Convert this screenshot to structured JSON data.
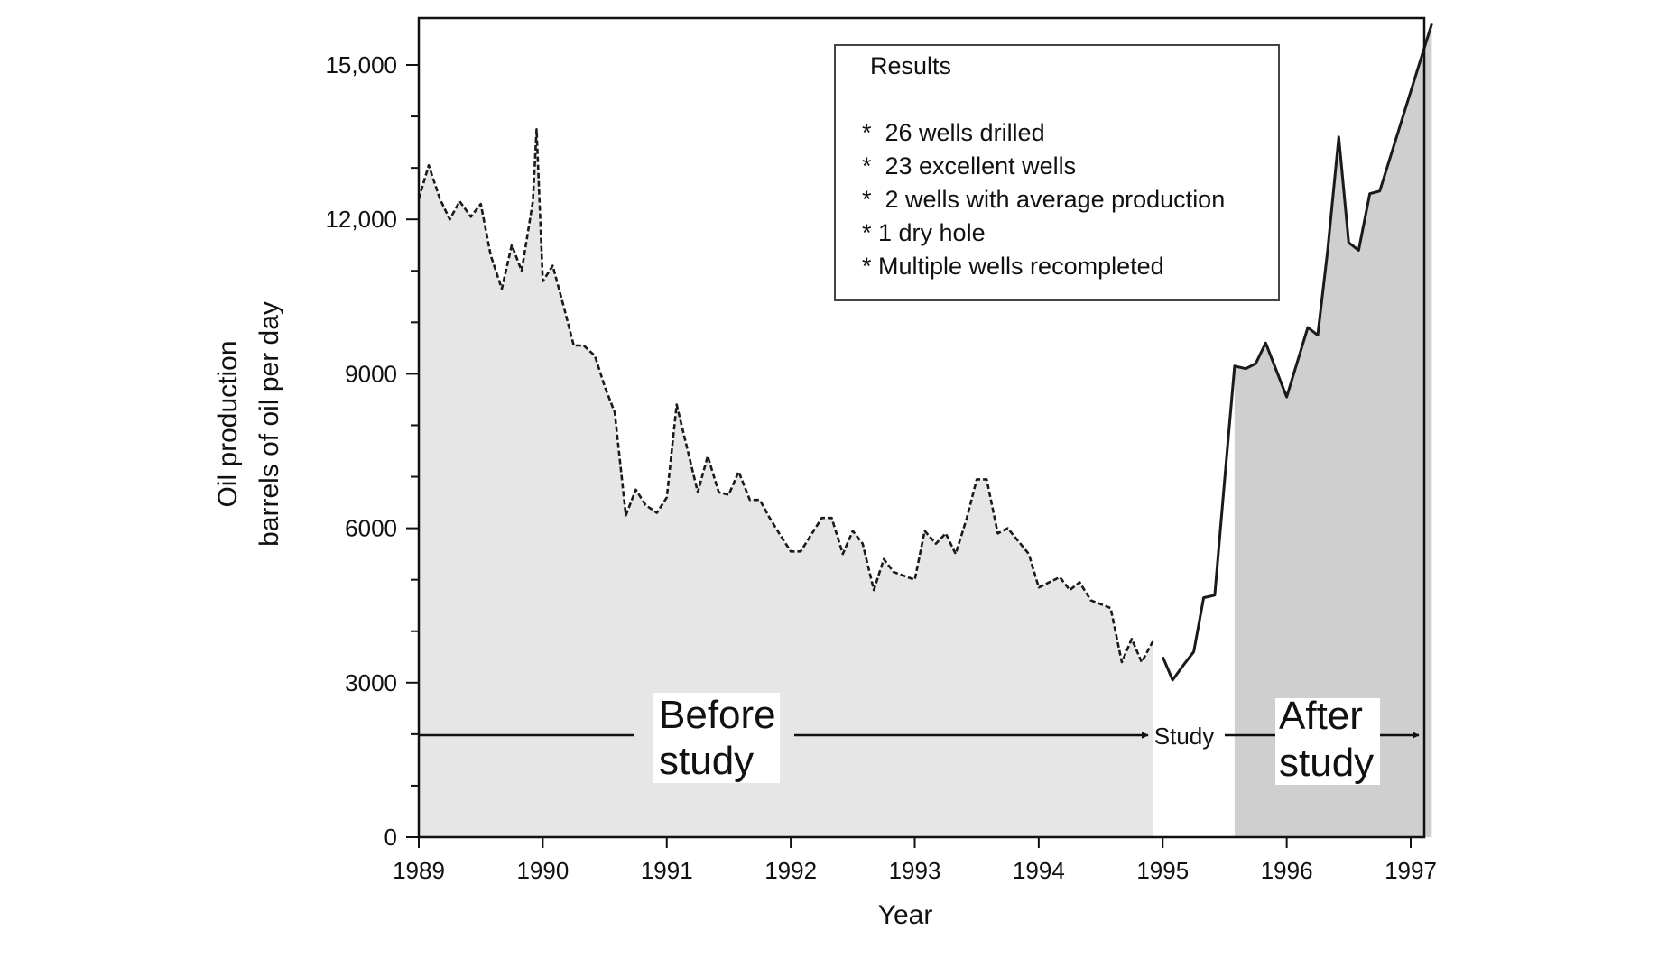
{
  "chart_data": {
    "type": "area",
    "title": "",
    "xlabel": "Year",
    "ylabel": [
      "Oil production",
      "barrels of oil per day"
    ],
    "xlim": [
      1989,
      1997.2
    ],
    "ylim": [
      0,
      16000
    ],
    "x_ticks": [
      1989,
      1990,
      1991,
      1992,
      1993,
      1994,
      1995,
      1996,
      1997
    ],
    "y_ticks": [
      {
        "value": 0,
        "label": "0"
      },
      {
        "value": 3000,
        "label": "3000"
      },
      {
        "value": 6000,
        "label": "6000"
      },
      {
        "value": 9000,
        "label": "9000"
      },
      {
        "value": 12000,
        "label": "12,000"
      },
      {
        "value": 15000,
        "label": "15,000"
      }
    ],
    "grid": false,
    "series": [
      {
        "style": "dashed",
        "points": [
          [
            1989.0,
            12400
          ],
          [
            1989.08,
            13050
          ],
          [
            1989.17,
            12400
          ],
          [
            1989.25,
            12000
          ],
          [
            1989.33,
            12350
          ],
          [
            1989.42,
            12050
          ],
          [
            1989.5,
            12300
          ],
          [
            1989.58,
            11300
          ],
          [
            1989.67,
            10650
          ],
          [
            1989.75,
            11500
          ],
          [
            1989.83,
            11000
          ],
          [
            1989.92,
            12350
          ],
          [
            1989.95,
            13750
          ],
          [
            1990.0,
            10800
          ],
          [
            1990.08,
            11100
          ],
          [
            1990.17,
            10300
          ],
          [
            1990.25,
            9550
          ],
          [
            1990.33,
            9550
          ],
          [
            1990.42,
            9350
          ],
          [
            1990.5,
            8750
          ],
          [
            1990.58,
            8250
          ],
          [
            1990.67,
            6250
          ],
          [
            1990.75,
            6750
          ],
          [
            1990.83,
            6450
          ],
          [
            1990.92,
            6300
          ],
          [
            1991.0,
            6600
          ],
          [
            1991.08,
            8400
          ],
          [
            1991.17,
            7500
          ],
          [
            1991.25,
            6700
          ],
          [
            1991.33,
            7400
          ],
          [
            1991.42,
            6700
          ],
          [
            1991.5,
            6650
          ],
          [
            1991.58,
            7100
          ],
          [
            1991.67,
            6550
          ],
          [
            1991.75,
            6550
          ],
          [
            1991.83,
            6200
          ],
          [
            1991.92,
            5850
          ],
          [
            1992.0,
            5550
          ],
          [
            1992.08,
            5550
          ],
          [
            1992.25,
            6200
          ],
          [
            1992.33,
            6200
          ],
          [
            1992.42,
            5500
          ],
          [
            1992.5,
            5950
          ],
          [
            1992.58,
            5700
          ],
          [
            1992.67,
            4800
          ],
          [
            1992.75,
            5400
          ],
          [
            1992.83,
            5150
          ],
          [
            1993.0,
            5000
          ],
          [
            1993.08,
            5950
          ],
          [
            1993.17,
            5700
          ],
          [
            1993.25,
            5900
          ],
          [
            1993.33,
            5500
          ],
          [
            1993.42,
            6200
          ],
          [
            1993.5,
            6950
          ],
          [
            1993.58,
            6950
          ],
          [
            1993.67,
            5900
          ],
          [
            1993.75,
            6000
          ],
          [
            1993.92,
            5500
          ],
          [
            1994.0,
            4850
          ],
          [
            1994.17,
            5050
          ],
          [
            1994.25,
            4800
          ],
          [
            1994.33,
            4950
          ],
          [
            1994.42,
            4600
          ],
          [
            1994.58,
            4450
          ],
          [
            1994.67,
            3400
          ],
          [
            1994.75,
            3850
          ],
          [
            1994.83,
            3400
          ],
          [
            1994.92,
            3800
          ]
        ]
      },
      {
        "style": "solid",
        "points": [
          [
            1995.0,
            3500
          ],
          [
            1995.08,
            3050
          ],
          [
            1995.17,
            3350
          ],
          [
            1995.25,
            3600
          ],
          [
            1995.33,
            4650
          ],
          [
            1995.42,
            4700
          ],
          [
            1995.5,
            6950
          ],
          [
            1995.58,
            9150
          ],
          [
            1995.67,
            9100
          ],
          [
            1995.75,
            9200
          ],
          [
            1995.83,
            9600
          ],
          [
            1996.0,
            8550
          ],
          [
            1996.17,
            9900
          ],
          [
            1996.25,
            9750
          ],
          [
            1996.33,
            11400
          ],
          [
            1996.42,
            13600
          ],
          [
            1996.5,
            11550
          ],
          [
            1996.58,
            11400
          ],
          [
            1996.67,
            12500
          ],
          [
            1996.75,
            12550
          ],
          [
            1997.17,
            15800
          ]
        ]
      }
    ],
    "shaded_regions": [
      {
        "from": 1989.0,
        "to": 1994.92,
        "color": "#e6e6e6"
      },
      {
        "from": 1995.58,
        "to": 1997.17,
        "color": "#cfcfcf"
      }
    ],
    "results_box": {
      "title": "Results",
      "items": [
        "*  26 wells drilled",
        "*  23 excellent wells",
        "*  2 wells with average production",
        "* 1 dry hole",
        "* Multiple wells recompleted"
      ]
    },
    "period_labels": {
      "before": [
        "Before",
        "study"
      ],
      "study": "Study",
      "after": [
        "After",
        "study"
      ]
    }
  }
}
